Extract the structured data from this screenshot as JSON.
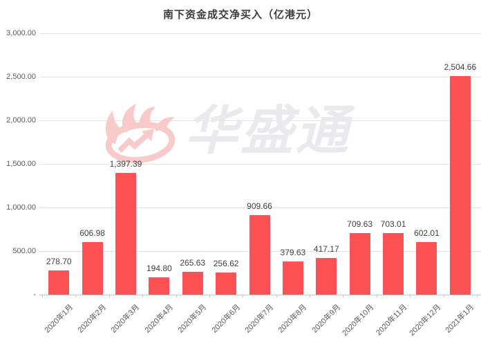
{
  "chart_data": {
    "type": "bar",
    "title": "南下资金成交净买入（亿港元）",
    "categories": [
      "2020年1月",
      "2020年2月",
      "2020年3月",
      "2020年4月",
      "2020年5月",
      "2020年6月",
      "2020年7月",
      "2020年8月",
      "2020年9月",
      "2020年10月",
      "2020年11月",
      "2020年12月",
      "2021年1月"
    ],
    "values": [
      278.7,
      606.98,
      1397.39,
      194.8,
      265.63,
      256.62,
      909.66,
      379.63,
      417.17,
      709.63,
      703.01,
      602.01,
      2504.66
    ],
    "value_labels": [
      "278.70",
      "606.98",
      "1,397.39",
      "194.80",
      "265.63",
      "256.62",
      "909.66",
      "379.63",
      "417.17",
      "709.63",
      "703.01",
      "602.01",
      "2,504.66"
    ],
    "y_ticks": [
      {
        "value": 3000,
        "label": "3,000.00"
      },
      {
        "value": 2500,
        "label": "2,500.00"
      },
      {
        "value": 2000,
        "label": "2,000.00"
      },
      {
        "value": 1500,
        "label": "1,500.00"
      },
      {
        "value": 1000,
        "label": "1,000.00"
      },
      {
        "value": 500,
        "label": "500.00"
      },
      {
        "value": 0,
        "label": "-"
      }
    ],
    "ylim": [
      0,
      3000
    ],
    "xlabel": "",
    "ylabel": "",
    "grid": true,
    "legend": false,
    "bar_color": "#fc5254"
  },
  "watermark": {
    "text": "华盛通",
    "text_color": "#eaeaee",
    "logo_color": "#f8caca",
    "logo": "huashengtong-flame-logo"
  }
}
